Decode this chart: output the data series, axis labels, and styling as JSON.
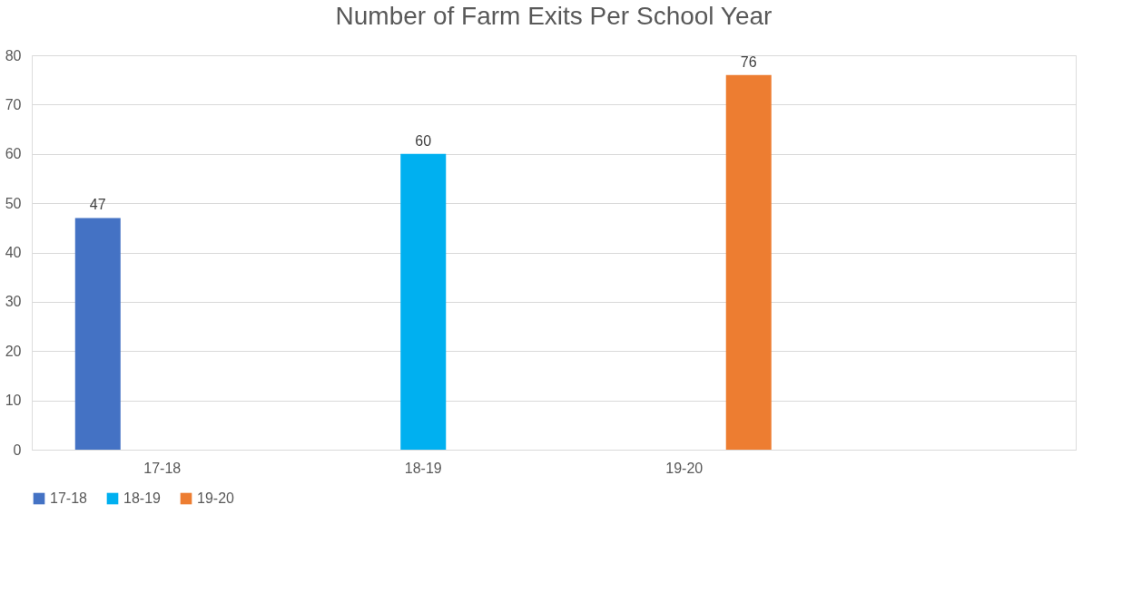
{
  "chart_data": {
    "type": "bar",
    "title": "Number of Farm Exits Per School Year",
    "categories": [
      "17-18",
      "18-19",
      "19-20",
      null
    ],
    "series": [
      {
        "name": "17-18",
        "color": "#4472c4",
        "values": [
          47,
          null,
          null,
          null
        ]
      },
      {
        "name": "18-19",
        "color": "#00b0f0",
        "values": [
          null,
          60,
          null,
          null
        ]
      },
      {
        "name": "19-20",
        "color": "#ed7d31",
        "values": [
          null,
          null,
          76,
          null
        ]
      }
    ],
    "ylim": [
      0,
      80
    ],
    "yticks": [
      0,
      10,
      20,
      30,
      40,
      50,
      60,
      70,
      80
    ],
    "grid": "y",
    "legend": "bottom",
    "data_labels": true
  }
}
